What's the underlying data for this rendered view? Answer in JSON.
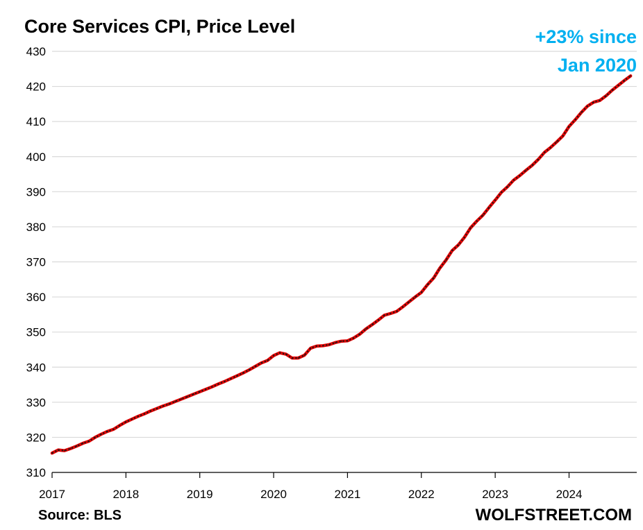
{
  "chart_data": {
    "type": "line",
    "title": "Core Services CPI, Price Level",
    "annotation": [
      "+23% since",
      "Jan 2020"
    ],
    "source": "Source: BLS",
    "brand": "WOLFSTREET.COM",
    "xlabel": "",
    "ylabel": "",
    "ylim": [
      310,
      430
    ],
    "yticks": [
      310,
      320,
      330,
      340,
      350,
      360,
      370,
      380,
      390,
      400,
      410,
      420,
      430
    ],
    "xlim": [
      "2017-01",
      "2024-12"
    ],
    "xticks": [
      "2017",
      "2018",
      "2019",
      "2020",
      "2021",
      "2022",
      "2023",
      "2024"
    ],
    "grid": "horizontal",
    "legend": "none",
    "colors": {
      "line": "#e00000",
      "dots": "#1a1a1a",
      "annotation": "#00b0f0",
      "grid": "#d9d9d9"
    },
    "series": [
      {
        "x": [
          "2017-01",
          "2017-02",
          "2017-03",
          "2017-04",
          "2017-05",
          "2017-06",
          "2017-07",
          "2017-08",
          "2017-09",
          "2017-10",
          "2017-11",
          "2017-12",
          "2018-01",
          "2018-02",
          "2018-03",
          "2018-04",
          "2018-05",
          "2018-06",
          "2018-07",
          "2018-08",
          "2018-09",
          "2018-10",
          "2018-11",
          "2018-12",
          "2019-01",
          "2019-02",
          "2019-03",
          "2019-04",
          "2019-05",
          "2019-06",
          "2019-07",
          "2019-08",
          "2019-09",
          "2019-10",
          "2019-11",
          "2019-12",
          "2020-01",
          "2020-02",
          "2020-03",
          "2020-04",
          "2020-05",
          "2020-06",
          "2020-07",
          "2020-08",
          "2020-09",
          "2020-10",
          "2020-11",
          "2020-12",
          "2021-01",
          "2021-02",
          "2021-03",
          "2021-04",
          "2021-05",
          "2021-06",
          "2021-07",
          "2021-08",
          "2021-09",
          "2021-10",
          "2021-11",
          "2021-12",
          "2022-01",
          "2022-02",
          "2022-03",
          "2022-04",
          "2022-05",
          "2022-06",
          "2022-07",
          "2022-08",
          "2022-09",
          "2022-10",
          "2022-11",
          "2022-12",
          "2023-01",
          "2023-02",
          "2023-03",
          "2023-04",
          "2023-05",
          "2023-06",
          "2023-07",
          "2023-08",
          "2023-09",
          "2023-10",
          "2023-11",
          "2023-12",
          "2024-01",
          "2024-02",
          "2024-03",
          "2024-04",
          "2024-05",
          "2024-06",
          "2024-07",
          "2024-08",
          "2024-09",
          "2024-10",
          "2024-11"
        ],
        "values": [
          315.5,
          316.4,
          316.2,
          316.8,
          317.5,
          318.3,
          318.9,
          320.0,
          320.9,
          321.7,
          322.3,
          323.4,
          324.4,
          325.2,
          326.0,
          326.7,
          327.5,
          328.2,
          328.9,
          329.5,
          330.2,
          330.9,
          331.6,
          332.3,
          333.0,
          333.7,
          334.4,
          335.2,
          335.9,
          336.7,
          337.5,
          338.3,
          339.2,
          340.2,
          341.2,
          341.9,
          343.3,
          344.1,
          343.7,
          342.6,
          342.6,
          343.4,
          345.4,
          346.0,
          346.1,
          346.4,
          347.0,
          347.4,
          347.5,
          348.3,
          349.4,
          350.9,
          352.1,
          353.4,
          354.8,
          355.3,
          355.9,
          357.2,
          358.6,
          360.0,
          361.3,
          363.5,
          365.4,
          368.2,
          370.5,
          373.2,
          374.8,
          377.0,
          379.7,
          381.6,
          383.3,
          385.5,
          387.6,
          389.8,
          391.4,
          393.3,
          394.6,
          396.1,
          397.5,
          399.2,
          401.2,
          402.6,
          404.2,
          405.9,
          408.6,
          410.5,
          412.6,
          414.4,
          415.5,
          416.0,
          417.3,
          418.9,
          420.3,
          421.7,
          423.0
        ]
      }
    ]
  }
}
